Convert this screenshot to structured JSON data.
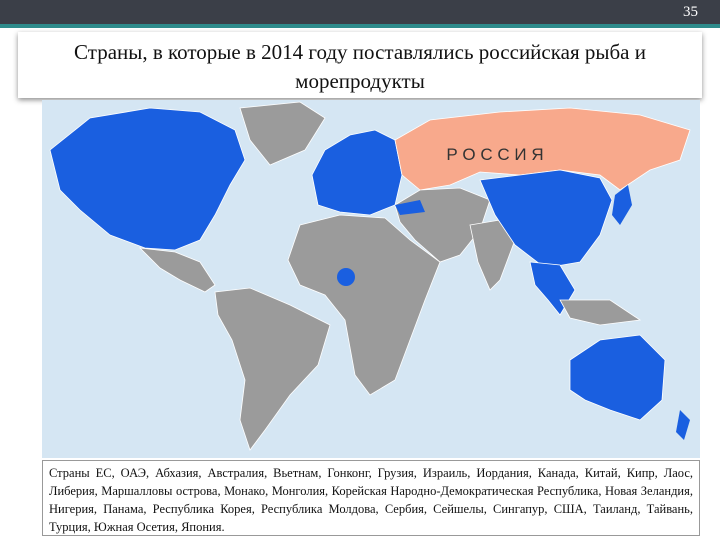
{
  "page_number": "35",
  "title": "Страны, в которые в 2014 году поставлялись российская рыба и морепродукты",
  "map": {
    "russia_label": "Р О С С И Я"
  },
  "caption": "Страны ЕС, ОАЭ, Абхазия, Австралия, Вьетнам, Гонконг, Грузия, Израиль, Иордания, Канада, Китай, Кипр, Лаос, Либерия, Маршалловы острова, Монако, Монголия, Корейская Народно-Демократическая Республика, Новая Зеландия, Нигерия, Панама, Республика Корея, Республика Молдова, Сербия, Сейшелы, Сингапур, США, Таиланд, Тайвань, Турция, Южная Осетия, Япония."
}
